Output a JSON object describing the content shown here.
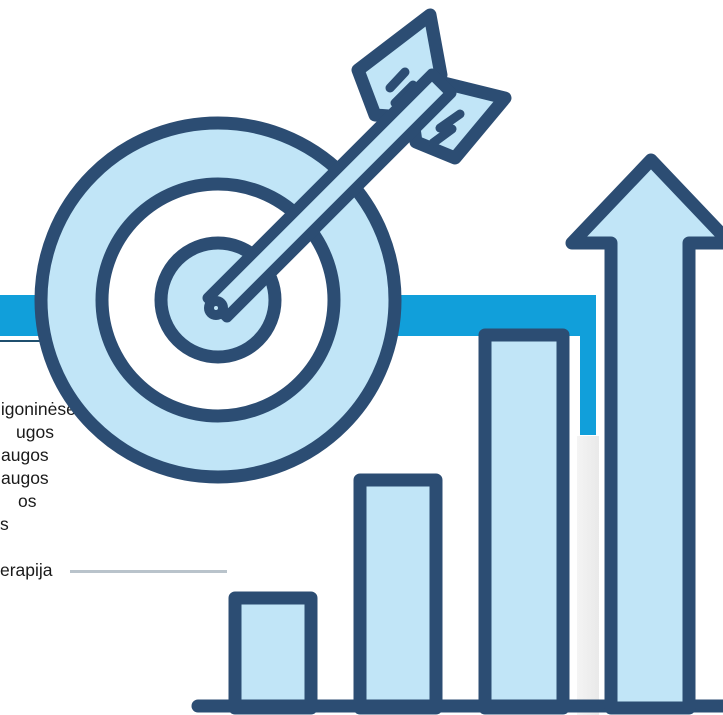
{
  "colors": {
    "band": "#119fda",
    "icon_fill": "#c1e5f7",
    "icon_stroke": "#2c4d73",
    "dark_line": "#1f4f6e"
  },
  "icons": [
    "target-icon",
    "arrow-icon",
    "bar-chart-icon",
    "up-arrow-icon"
  ],
  "text_fragments": [
    "ligoninėse",
    "ugos",
    "augos",
    "augos",
    "os",
    "s",
    "",
    "erapija"
  ]
}
